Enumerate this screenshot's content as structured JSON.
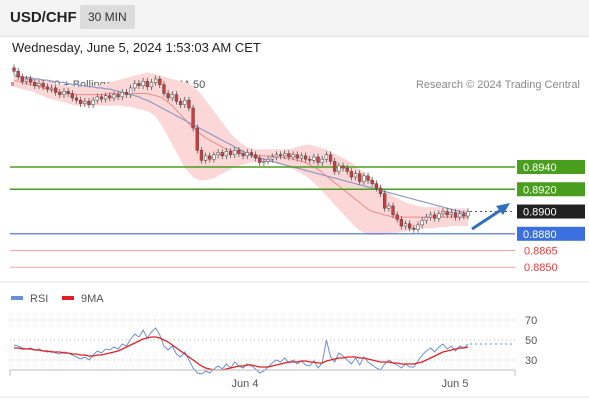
{
  "header": {
    "pair": "USD/CHF",
    "timeframe": "30 MIN"
  },
  "datetime": "Wednesday, June 5, 2024 1:53:03 AM CET",
  "legend": {
    "ma20": "MA 20 + Bollinger Bands",
    "ma50": "MA 50",
    "ma20_color": "#f08a8a",
    "ma50_color": "#2b4f8c",
    "credit": "Research © 2024 Trading Central"
  },
  "rsi_legend": {
    "rsi": "RSI",
    "ma9": "9MA",
    "rsi_color": "#6a8fd9",
    "ma9_color": "#e02020"
  },
  "colors": {
    "resistance": "#4a9e1e",
    "support": "#3b6fe0",
    "support_light": "#f4a5a5",
    "label_red": "#e84040",
    "last_price_bg": "#222222",
    "candle_up": "#ffffff",
    "candle_down": "#d63b3b",
    "bollinger_fill": "#fbd7d7",
    "arrow": "#2f6fba"
  },
  "chart_data": [
    {
      "type": "candlestick",
      "yaxis_side": "right",
      "ylim": [
        0.8843,
        0.8984
      ],
      "x_ticks": [
        "Jun 4",
        "Jun 5"
      ],
      "levels": [
        {
          "label": "0.8940",
          "value": 0.894,
          "kind": "resistance"
        },
        {
          "label": "0.8920",
          "value": 0.892,
          "kind": "resistance"
        },
        {
          "label": "0.8900",
          "value": 0.89,
          "kind": "last"
        },
        {
          "label": "0.8880",
          "value": 0.888,
          "kind": "support"
        },
        {
          "label": "0.8865",
          "value": 0.8865,
          "kind": "support-minor"
        },
        {
          "label": "0.8850",
          "value": 0.885,
          "kind": "support-minor"
        }
      ],
      "close": [
        0.9026,
        0.9021,
        0.9017,
        0.9019,
        0.9016,
        0.9013,
        0.9015,
        0.9012,
        0.901,
        0.9011,
        0.9007,
        0.9005,
        0.9008,
        0.9006,
        0.9002,
        0.9,
        0.8997,
        0.8999,
        0.8996,
        0.9,
        0.9003,
        0.9001,
        0.9004,
        0.9002,
        0.9005,
        0.9003,
        0.9007,
        0.9005,
        0.9011,
        0.9015,
        0.9013,
        0.9017,
        0.9012,
        0.9016,
        0.9019,
        0.9014,
        0.9006,
        0.9002,
        0.9005,
        0.8999,
        0.8996,
        0.9,
        0.8993,
        0.8975,
        0.8955,
        0.8946,
        0.895,
        0.8947,
        0.8951,
        0.8953,
        0.895,
        0.8954,
        0.8951,
        0.8955,
        0.8952,
        0.895,
        0.8953,
        0.8951,
        0.8948,
        0.8944,
        0.8945,
        0.8947,
        0.8949,
        0.8951,
        0.895,
        0.8952,
        0.8949,
        0.8951,
        0.8948,
        0.895,
        0.8947,
        0.8946,
        0.8949,
        0.8944,
        0.8947,
        0.8951,
        0.8945,
        0.8936,
        0.8941,
        0.8939,
        0.8936,
        0.8931,
        0.8934,
        0.8927,
        0.8932,
        0.8928,
        0.8925,
        0.8921,
        0.8916,
        0.8903,
        0.8905,
        0.8897,
        0.8893,
        0.8887,
        0.8889,
        0.8885,
        0.8884,
        0.8888,
        0.8892,
        0.8895,
        0.8897,
        0.8894,
        0.8898,
        0.89,
        0.8897,
        0.8899,
        0.8895,
        0.8898,
        0.8896,
        0.89
      ],
      "ma20": [
        0.9018,
        0.9017,
        0.9016,
        0.9015,
        0.9014,
        0.9013,
        0.9012,
        0.9011,
        0.901,
        0.9009,
        0.9008,
        0.9007,
        0.9007,
        0.9006,
        0.9006,
        0.9005,
        0.9005,
        0.9005,
        0.9005,
        0.9005,
        0.9005,
        0.9005,
        0.9005,
        0.9006,
        0.9006,
        0.9006,
        0.9006,
        0.9006,
        0.9006,
        0.9006,
        0.9006,
        0.9006,
        0.9006,
        0.9005,
        0.9004,
        0.9003,
        0.9001,
        0.8998,
        0.8995,
        0.8991,
        0.8987,
        0.8983,
        0.8979,
        0.8975,
        0.8972,
        0.8969,
        0.8966,
        0.8964,
        0.8962,
        0.896,
        0.8958,
        0.8956,
        0.8955,
        0.8954,
        0.8953,
        0.8952,
        0.8951,
        0.8951,
        0.895,
        0.895,
        0.895,
        0.895,
        0.895,
        0.8949,
        0.8949,
        0.8948,
        0.8948,
        0.8947,
        0.8946,
        0.8945,
        0.8944,
        0.8942,
        0.894,
        0.8938,
        0.8935,
        0.8932,
        0.8929,
        0.8926,
        0.8923,
        0.892,
        0.8917,
        0.8914,
        0.8911,
        0.8908,
        0.8905,
        0.8902,
        0.89,
        0.8899,
        0.8898,
        0.8897,
        0.8896,
        0.8895,
        0.8895,
        0.8895,
        0.8895,
        0.8895,
        0.8895,
        0.8895,
        0.8895,
        0.8895,
        0.8895,
        0.8895,
        0.8895,
        0.8895,
        0.8895,
        0.8895,
        0.8895,
        0.8895,
        0.8895,
        0.8895
      ],
      "bb_upper": [
        0.9024,
        0.9023,
        0.9022,
        0.9022,
        0.9021,
        0.902,
        0.9019,
        0.9018,
        0.9017,
        0.9016,
        0.9015,
        0.9014,
        0.9014,
        0.9013,
        0.9013,
        0.9012,
        0.9012,
        0.9012,
        0.9012,
        0.9013,
        0.9013,
        0.9014,
        0.9015,
        0.9016,
        0.9017,
        0.9018,
        0.9019,
        0.902,
        0.9021,
        0.9022,
        0.9023,
        0.9024,
        0.9025,
        0.9024,
        0.9023,
        0.9022,
        0.9021,
        0.902,
        0.9019,
        0.9018,
        0.9017,
        0.9016,
        0.9015,
        0.9012,
        0.9009,
        0.9005,
        0.9,
        0.8995,
        0.899,
        0.8985,
        0.898,
        0.8975,
        0.897,
        0.8966,
        0.8963,
        0.896,
        0.8958,
        0.8957,
        0.8956,
        0.8956,
        0.8956,
        0.8956,
        0.8956,
        0.8956,
        0.8956,
        0.8956,
        0.8956,
        0.8957,
        0.8958,
        0.8959,
        0.896,
        0.896,
        0.8959,
        0.8958,
        0.8957,
        0.8956,
        0.8954,
        0.8952,
        0.895,
        0.8948,
        0.8946,
        0.8944,
        0.8941,
        0.8938,
        0.8935,
        0.8932,
        0.8929,
        0.8926,
        0.8923,
        0.892,
        0.8917,
        0.8914,
        0.8912,
        0.891,
        0.8908,
        0.8907,
        0.8906,
        0.8905,
        0.8904,
        0.8904,
        0.8904,
        0.8904,
        0.8904,
        0.8903,
        0.8903,
        0.8903,
        0.8903,
        0.8903,
        0.8903,
        0.8902
      ],
      "bb_lower": [
        0.9012,
        0.9011,
        0.901,
        0.9009,
        0.9008,
        0.9007,
        0.9005,
        0.9004,
        0.9002,
        0.9001,
        0.9,
        0.8999,
        0.8998,
        0.8997,
        0.8996,
        0.8995,
        0.8995,
        0.8995,
        0.8995,
        0.8995,
        0.8995,
        0.8995,
        0.8995,
        0.8995,
        0.8995,
        0.8995,
        0.8995,
        0.8994,
        0.8994,
        0.8993,
        0.8992,
        0.8991,
        0.899,
        0.8988,
        0.8985,
        0.898,
        0.8974,
        0.8967,
        0.896,
        0.8953,
        0.8946,
        0.8939,
        0.8935,
        0.8931,
        0.8929,
        0.8928,
        0.8928,
        0.8929,
        0.893,
        0.8932,
        0.8934,
        0.8936,
        0.8938,
        0.894,
        0.8941,
        0.8942,
        0.8943,
        0.8944,
        0.8944,
        0.8944,
        0.8944,
        0.8944,
        0.8944,
        0.8943,
        0.8942,
        0.8941,
        0.894,
        0.8938,
        0.8936,
        0.8934,
        0.8932,
        0.8929,
        0.8926,
        0.8922,
        0.8918,
        0.8914,
        0.891,
        0.8906,
        0.8902,
        0.8898,
        0.8894,
        0.889,
        0.8886,
        0.8883,
        0.8881,
        0.888,
        0.8879,
        0.8879,
        0.8879,
        0.888,
        0.888,
        0.8881,
        0.8881,
        0.8882,
        0.8882,
        0.8883,
        0.8883,
        0.8884,
        0.8884,
        0.8885,
        0.8885,
        0.8885,
        0.8886,
        0.8886,
        0.8886,
        0.8887,
        0.8887,
        0.8887,
        0.8887,
        0.8887
      ],
      "ma50": [
        0.9022,
        0.9021,
        0.9021,
        0.902,
        0.902,
        0.9019,
        0.9019,
        0.9018,
        0.9018,
        0.9017,
        0.9017,
        0.9016,
        0.9016,
        0.9015,
        0.9014,
        0.9014,
        0.9013,
        0.9013,
        0.9012,
        0.9012,
        0.9011,
        0.9011,
        0.901,
        0.901,
        0.9009,
        0.9008,
        0.9007,
        0.9006,
        0.9005,
        0.9004,
        0.9003,
        0.9001,
        0.9,
        0.8998,
        0.8996,
        0.8994,
        0.8992,
        0.899,
        0.8988,
        0.8986,
        0.8984,
        0.8982,
        0.898,
        0.8978,
        0.8976,
        0.8974,
        0.8972,
        0.897,
        0.8968,
        0.8966,
        0.8964,
        0.8962,
        0.896,
        0.8958,
        0.8956,
        0.8954,
        0.8952,
        0.895,
        0.8949,
        0.8948,
        0.8947,
        0.8946,
        0.8945,
        0.8944,
        0.8943,
        0.8942,
        0.8941,
        0.894,
        0.8939,
        0.8938,
        0.8937,
        0.8936,
        0.8935,
        0.8934,
        0.8933,
        0.8932,
        0.8931,
        0.893,
        0.8929,
        0.8928,
        0.8927,
        0.8926,
        0.8925,
        0.8924,
        0.8923,
        0.8922,
        0.8921,
        0.892,
        0.8919,
        0.8918,
        0.8917,
        0.8916,
        0.8915,
        0.8914,
        0.8913,
        0.8912,
        0.8911,
        0.891,
        0.8909,
        0.8908,
        0.8907,
        0.8906,
        0.8905,
        0.8904,
        0.8903,
        0.8902,
        0.8901,
        0.89,
        0.8899,
        0.8898
      ]
    },
    {
      "type": "line",
      "ylim": [
        20,
        80
      ],
      "y_ticks": [
        70,
        50,
        30
      ],
      "series": [
        {
          "name": "RSI",
          "values": [
            45,
            44,
            42,
            41,
            42,
            40,
            41,
            39,
            38,
            39,
            37,
            36,
            38,
            37,
            35,
            33,
            31,
            33,
            30,
            35,
            39,
            37,
            41,
            40,
            43,
            41,
            46,
            44,
            51,
            56,
            53,
            60,
            52,
            58,
            62,
            55,
            44,
            40,
            44,
            36,
            33,
            38,
            30,
            22,
            17,
            16,
            19,
            17,
            21,
            24,
            21,
            26,
            22,
            28,
            24,
            22,
            26,
            24,
            21,
            17,
            19,
            23,
            27,
            30,
            28,
            32,
            27,
            30,
            26,
            29,
            25,
            24,
            29,
            22,
            27,
            50,
            33,
            28,
            37,
            34,
            30,
            26,
            32,
            25,
            33,
            28,
            25,
            22,
            20,
            26,
            30,
            27,
            25,
            22,
            26,
            23,
            23,
            29,
            35,
            39,
            42,
            38,
            43,
            46,
            41,
            44,
            39,
            44,
            42,
            46
          ]
        },
        {
          "name": "9MA",
          "values": [
            42,
            42,
            41,
            41,
            41,
            40,
            40,
            39,
            39,
            38,
            38,
            38,
            37,
            37,
            36,
            36,
            35,
            35,
            34,
            34,
            35,
            35,
            36,
            37,
            38,
            39,
            41,
            43,
            45,
            47,
            49,
            51,
            52,
            53,
            53,
            52,
            50,
            48,
            45,
            42,
            39,
            36,
            33,
            30,
            27,
            24,
            22,
            21,
            20,
            20,
            20,
            21,
            22,
            23,
            24,
            24,
            25,
            25,
            24,
            23,
            23,
            23,
            24,
            25,
            26,
            27,
            28,
            28,
            28,
            29,
            29,
            28,
            28,
            27,
            27,
            29,
            30,
            31,
            32,
            32,
            33,
            33,
            33,
            32,
            32,
            31,
            30,
            29,
            28,
            28,
            28,
            27,
            27,
            26,
            26,
            26,
            26,
            27,
            28,
            30,
            32,
            34,
            36,
            38,
            39,
            40,
            41,
            42,
            42,
            43
          ]
        }
      ],
      "x_ticks": [
        "Jun 4",
        "Jun 5"
      ]
    }
  ]
}
